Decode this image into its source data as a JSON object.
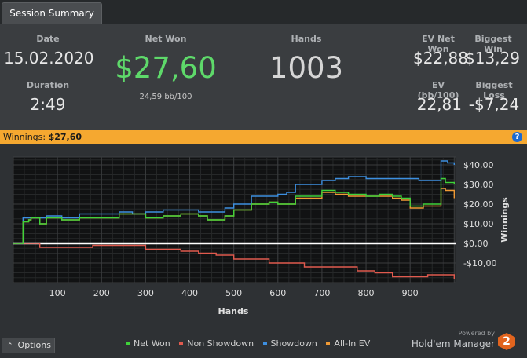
{
  "tab": {
    "label": "Session Summary"
  },
  "summary": {
    "date": {
      "label": "Date",
      "value": "15.02.2020"
    },
    "duration": {
      "label": "Duration",
      "value": "2:49"
    },
    "net_won": {
      "label": "Net Won",
      "value": "$27,60",
      "sub": "24,59 bb/100"
    },
    "hands": {
      "label": "Hands",
      "value": "1003"
    },
    "ev_net_won": {
      "label": "EV Net Won",
      "value": "$22,88"
    },
    "biggest_win": {
      "label": "Biggest Win",
      "value": "$13,29"
    },
    "ev_bb100": {
      "label": "EV (bb/100)",
      "value": "22,81"
    },
    "biggest_loss": {
      "label": "Biggest Loss",
      "value": "-$7,24"
    }
  },
  "winnings_bar": {
    "label": "Winnings:",
    "value": "$27,60",
    "help": "?"
  },
  "footer": {
    "options_label": "Options",
    "options_icon": "chevron-up-icon",
    "powered_by": "Powered by",
    "brand": "Hold'em Manager",
    "badge": "2"
  },
  "colors": {
    "net_won": "#3fd23a",
    "non_showdown": "#e05a4e",
    "showdown": "#3d8fe0",
    "all_in_ev": "#f09a35",
    "accent": "#f5a830"
  },
  "chart_data": {
    "type": "line",
    "xlabel": "Hands",
    "ylabel": "Winnings",
    "xlim": [
      0,
      1003
    ],
    "ylim": [
      -20,
      44
    ],
    "x_ticks": [
      100,
      200,
      300,
      400,
      500,
      600,
      700,
      800,
      900
    ],
    "y_ticks": [
      40,
      30,
      20,
      10,
      0,
      -10
    ],
    "y_tick_labels": [
      "$40,00",
      "$30,00",
      "$20,00",
      "$10,00",
      "$0,00",
      "-$10,00"
    ],
    "grid": true,
    "legend_position": "bottom",
    "series": [
      {
        "name": "Net Won",
        "color": "#3fd23a",
        "points": [
          [
            0,
            0
          ],
          [
            20,
            0
          ],
          [
            22,
            11
          ],
          [
            35,
            12
          ],
          [
            40,
            13
          ],
          [
            60,
            10
          ],
          [
            75,
            13
          ],
          [
            110,
            12
          ],
          [
            150,
            13
          ],
          [
            200,
            13
          ],
          [
            240,
            15
          ],
          [
            270,
            15
          ],
          [
            300,
            13
          ],
          [
            340,
            14
          ],
          [
            380,
            15
          ],
          [
            420,
            14
          ],
          [
            440,
            12
          ],
          [
            480,
            14
          ],
          [
            500,
            17
          ],
          [
            540,
            20
          ],
          [
            580,
            21
          ],
          [
            600,
            20
          ],
          [
            640,
            24
          ],
          [
            680,
            24
          ],
          [
            700,
            27
          ],
          [
            730,
            26
          ],
          [
            760,
            25
          ],
          [
            800,
            24
          ],
          [
            830,
            25
          ],
          [
            860,
            24
          ],
          [
            880,
            23
          ],
          [
            900,
            19
          ],
          [
            930,
            20
          ],
          [
            960,
            20
          ],
          [
            970,
            33
          ],
          [
            980,
            31
          ],
          [
            1000,
            30
          ]
        ]
      },
      {
        "name": "Non Showdown",
        "color": "#e05a4e",
        "points": [
          [
            0,
            0
          ],
          [
            60,
            -2
          ],
          [
            120,
            -2
          ],
          [
            180,
            -1
          ],
          [
            220,
            -1
          ],
          [
            260,
            -1
          ],
          [
            300,
            -3
          ],
          [
            340,
            -3
          ],
          [
            380,
            -4
          ],
          [
            420,
            -5
          ],
          [
            460,
            -6
          ],
          [
            500,
            -8
          ],
          [
            540,
            -8
          ],
          [
            580,
            -10
          ],
          [
            620,
            -10
          ],
          [
            660,
            -12
          ],
          [
            700,
            -12
          ],
          [
            740,
            -12
          ],
          [
            780,
            -14
          ],
          [
            820,
            -15
          ],
          [
            860,
            -17
          ],
          [
            900,
            -17
          ],
          [
            940,
            -16
          ],
          [
            970,
            -16
          ],
          [
            1000,
            -18
          ]
        ]
      },
      {
        "name": "Showdown",
        "color": "#3d8fe0",
        "points": [
          [
            0,
            0
          ],
          [
            20,
            0
          ],
          [
            22,
            13
          ],
          [
            40,
            13
          ],
          [
            75,
            14
          ],
          [
            110,
            13
          ],
          [
            150,
            15
          ],
          [
            200,
            15
          ],
          [
            240,
            16
          ],
          [
            270,
            15
          ],
          [
            300,
            16
          ],
          [
            340,
            17
          ],
          [
            380,
            17
          ],
          [
            420,
            16
          ],
          [
            440,
            16
          ],
          [
            480,
            18
          ],
          [
            500,
            20
          ],
          [
            540,
            24
          ],
          [
            560,
            24
          ],
          [
            600,
            25
          ],
          [
            620,
            26
          ],
          [
            640,
            30
          ],
          [
            680,
            30
          ],
          [
            700,
            32
          ],
          [
            730,
            33
          ],
          [
            760,
            34
          ],
          [
            800,
            33
          ],
          [
            860,
            33
          ],
          [
            880,
            33
          ],
          [
            920,
            32
          ],
          [
            940,
            32
          ],
          [
            960,
            32
          ],
          [
            970,
            42
          ],
          [
            985,
            41
          ],
          [
            1000,
            40
          ]
        ]
      },
      {
        "name": "All-In EV",
        "color": "#f09a35",
        "points": [
          [
            0,
            0
          ],
          [
            20,
            0
          ],
          [
            22,
            11
          ],
          [
            35,
            12
          ],
          [
            40,
            13
          ],
          [
            60,
            10
          ],
          [
            75,
            13
          ],
          [
            110,
            12
          ],
          [
            150,
            13
          ],
          [
            200,
            13
          ],
          [
            240,
            15
          ],
          [
            270,
            15
          ],
          [
            300,
            13
          ],
          [
            340,
            14
          ],
          [
            380,
            15
          ],
          [
            420,
            14
          ],
          [
            440,
            12
          ],
          [
            480,
            14
          ],
          [
            500,
            17
          ],
          [
            540,
            20
          ],
          [
            580,
            21
          ],
          [
            600,
            20
          ],
          [
            640,
            23
          ],
          [
            680,
            23
          ],
          [
            700,
            26
          ],
          [
            730,
            25
          ],
          [
            760,
            24
          ],
          [
            800,
            24
          ],
          [
            830,
            24
          ],
          [
            860,
            23
          ],
          [
            880,
            22
          ],
          [
            900,
            18
          ],
          [
            930,
            19
          ],
          [
            960,
            19
          ],
          [
            970,
            28
          ],
          [
            980,
            27
          ],
          [
            1000,
            23
          ]
        ]
      }
    ]
  }
}
